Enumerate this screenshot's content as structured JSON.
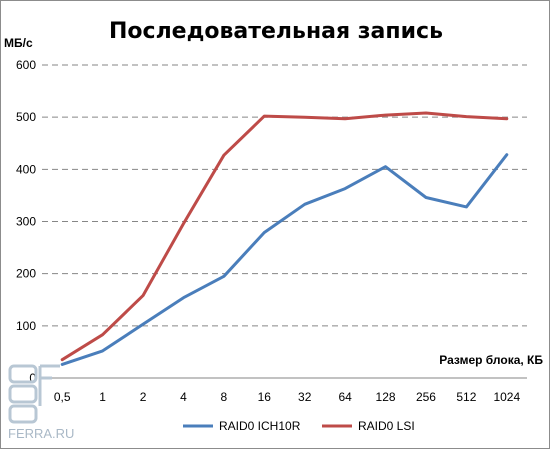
{
  "chart_data": {
    "type": "line",
    "title": "Последовательная запись",
    "ylabel": "МБ/с",
    "xlabel": "Размер блока, КБ",
    "ylim": [
      0,
      600
    ],
    "yticks": [
      "0",
      "100",
      "200",
      "300",
      "400",
      "500",
      "600"
    ],
    "categories": [
      "0,5",
      "1",
      "2",
      "4",
      "8",
      "16",
      "32",
      "64",
      "128",
      "256",
      "512",
      "1024"
    ],
    "series": [
      {
        "name": "RAID0 ICH10R",
        "color": "#4a7ebb",
        "values": [
          26,
          52,
          103,
          154,
          195,
          279,
          333,
          363,
          405,
          346,
          328,
          428
        ]
      },
      {
        "name": "RAID0 LSI",
        "color": "#be4b48",
        "values": [
          35,
          83,
          158,
          296,
          427,
          502,
          500,
          497,
          504,
          508,
          501,
          497
        ]
      }
    ],
    "grid": true,
    "legend": "bottom"
  },
  "watermark": {
    "text": "FERRA.RU"
  }
}
